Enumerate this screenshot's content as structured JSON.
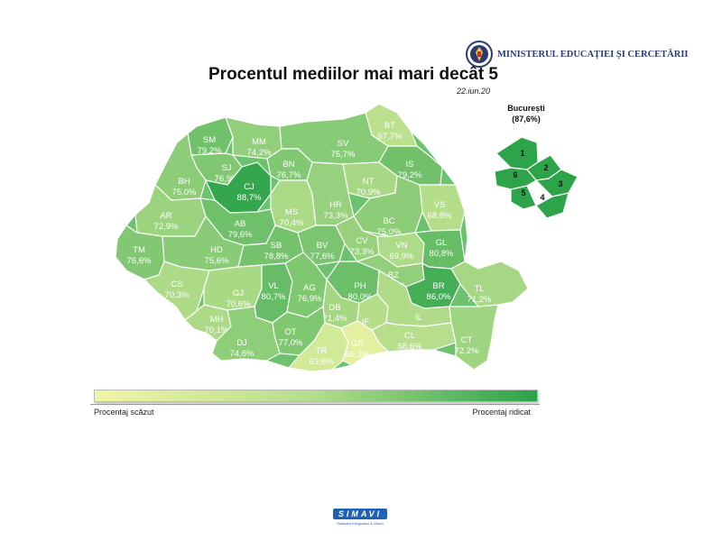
{
  "header": {
    "title": "Procentul mediilor mai mari decât 5",
    "date": "22.iun.20",
    "ministry": "MINISTERUL EDUCAȚIEI ȘI CERCETĂRII"
  },
  "colors": {
    "low": "#f1f5a6",
    "high": "#2aa24a",
    "background": "#ffffff"
  },
  "counties": [
    {
      "code": "SM",
      "value": "79,2%"
    },
    {
      "code": "MM",
      "value": "74,2%"
    },
    {
      "code": "BT",
      "value": "67,7%"
    },
    {
      "code": "SV",
      "value": "75,7%"
    },
    {
      "code": "SJ",
      "value": "76,9%"
    },
    {
      "code": "BN",
      "value": "76,7%"
    },
    {
      "code": "IS",
      "value": "79,2%"
    },
    {
      "code": "BH",
      "value": "75,0%"
    },
    {
      "code": "CJ",
      "value": "88,7%"
    },
    {
      "code": "NT",
      "value": "70,9%"
    },
    {
      "code": "MS",
      "value": "70,4%"
    },
    {
      "code": "HR",
      "value": "73,3%"
    },
    {
      "code": "VS",
      "value": "68,8%"
    },
    {
      "code": "AR",
      "value": "72,9%"
    },
    {
      "code": "BC",
      "value": "75,0%"
    },
    {
      "code": "AB",
      "value": "79,6%"
    },
    {
      "code": "TM",
      "value": "76,6%"
    },
    {
      "code": "HD",
      "value": "75,6%"
    },
    {
      "code": "SB",
      "value": "78,8%"
    },
    {
      "code": "BV",
      "value": "77,6%"
    },
    {
      "code": "CV",
      "value": "73,3%"
    },
    {
      "code": "VN",
      "value": "69,9%"
    },
    {
      "code": "GL",
      "value": "80,8%"
    },
    {
      "code": "CS",
      "value": "70,3%"
    },
    {
      "code": "GJ",
      "value": "70,6%"
    },
    {
      "code": "VL",
      "value": "80,7%"
    },
    {
      "code": "AG",
      "value": "76,9%"
    },
    {
      "code": "PH",
      "value": "80,0%"
    },
    {
      "code": "BZ",
      "value": "74,2%"
    },
    {
      "code": "BR",
      "value": "86,0%"
    },
    {
      "code": "TL",
      "value": "71,2%"
    },
    {
      "code": "DB",
      "value": "71,4%"
    },
    {
      "code": "MH",
      "value": "70,1%"
    },
    {
      "code": "IF",
      "value": "68,9%"
    },
    {
      "code": "IL",
      "value": "69,6%"
    },
    {
      "code": "OT",
      "value": "77,0%"
    },
    {
      "code": "DJ",
      "value": "74,6%"
    },
    {
      "code": "CL",
      "value": "68,6%"
    },
    {
      "code": "CT",
      "value": "72,2%"
    },
    {
      "code": "TR",
      "value": "63,6%"
    },
    {
      "code": "GR",
      "value": "60,3%"
    }
  ],
  "bucharest": {
    "title": "București",
    "value": "(87,6%)",
    "sectors": [
      "1",
      "2",
      "3",
      "4",
      "5",
      "6"
    ]
  },
  "legend": {
    "low_label": "Procentaj scăzut",
    "high_label": "Procentaj ridicat"
  },
  "footer": {
    "logo": "SIMAVI",
    "tagline": "Software Integration & Vision"
  }
}
